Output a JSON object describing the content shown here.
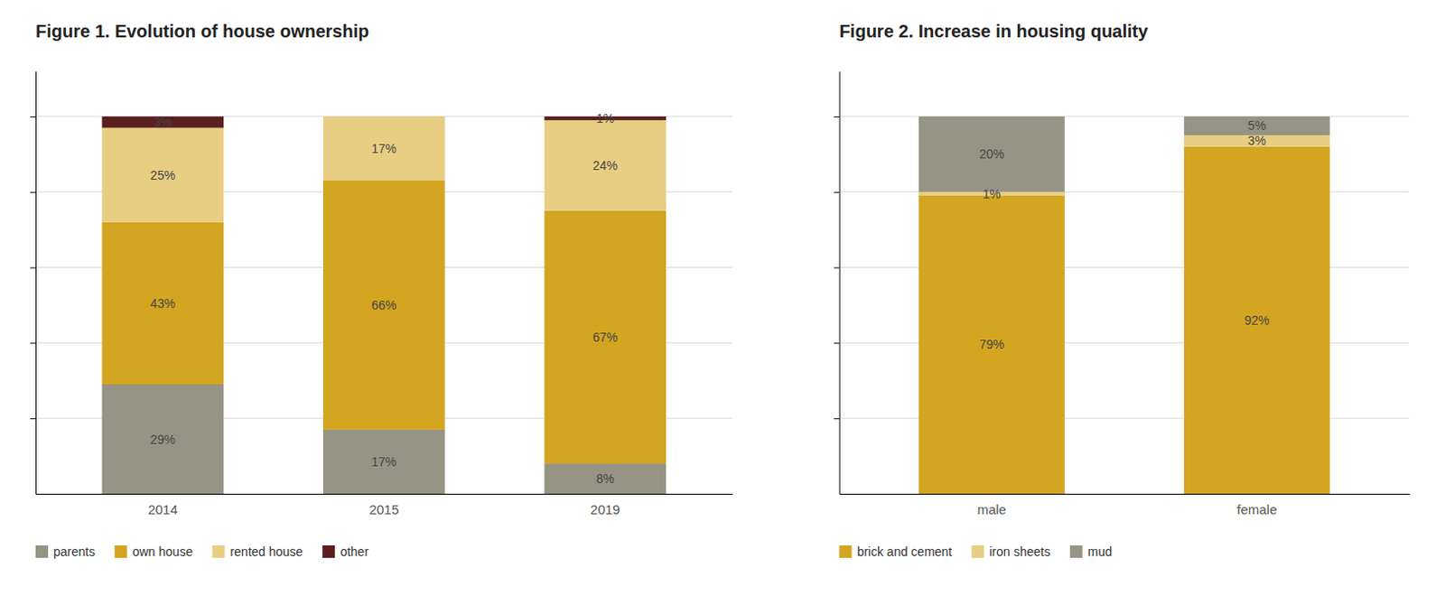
{
  "chart_data": [
    {
      "type": "bar",
      "stacked": true,
      "title": "Figure 1. Evolution of house ownership",
      "categories": [
        "2014",
        "2015",
        "2019"
      ],
      "series": [
        {
          "name": "parents",
          "color": "#969484",
          "values": [
            29,
            17,
            8
          ],
          "value_labels": [
            "29%",
            "17%",
            "8%"
          ]
        },
        {
          "name": "own house",
          "color": "#d4a520",
          "values": [
            43,
            66,
            67
          ],
          "value_labels": [
            "43%",
            "66%",
            "67%"
          ]
        },
        {
          "name": "rented house",
          "color": "#e8ce82",
          "values": [
            25,
            17,
            24
          ],
          "value_labels": [
            "25%",
            "17%",
            "24%"
          ]
        },
        {
          "name": "other",
          "color": "#5c1f1f",
          "values": [
            3,
            0,
            1
          ],
          "value_labels": [
            "3%",
            null,
            "1%"
          ]
        }
      ],
      "ylim": [
        0,
        112
      ],
      "yticks": [
        20,
        40,
        60,
        80,
        100
      ],
      "grid": true,
      "tick_labels": "x",
      "data_labels": true,
      "legend": "bottom"
    },
    {
      "type": "bar",
      "stacked": true,
      "title": "Figure 2. Increase in housing quality",
      "categories": [
        "male",
        "female"
      ],
      "series": [
        {
          "name": "brick and cement",
          "color": "#d4a520",
          "values": [
            79,
            92
          ],
          "value_labels": [
            "79%",
            "92%"
          ]
        },
        {
          "name": "iron sheets",
          "color": "#e8ce82",
          "values": [
            1,
            3
          ],
          "value_labels": [
            "1%",
            "3%"
          ]
        },
        {
          "name": "mud",
          "color": "#969484",
          "values": [
            20,
            5
          ],
          "value_labels": [
            "20%",
            "5%"
          ]
        }
      ],
      "ylim": [
        0,
        112
      ],
      "yticks": [
        20,
        40,
        60,
        80,
        100
      ],
      "grid": true,
      "tick_labels": "x",
      "data_labels": true,
      "legend": "bottom"
    }
  ]
}
